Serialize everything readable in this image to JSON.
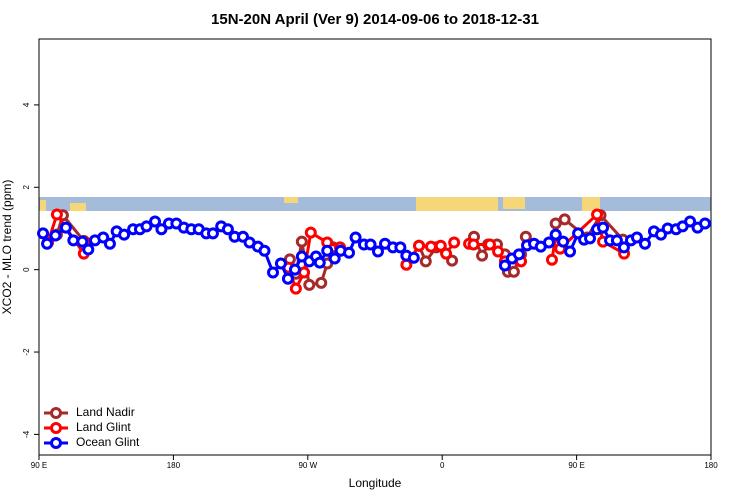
{
  "chart_data": {
    "type": "line",
    "title": "15N-20N April (Ver 9)   2014-09-06 to 2018-12-31",
    "xlabel": "Longitude",
    "ylabel": "XCO2 - MLO trend (ppm)",
    "xlim": [
      90,
      540
    ],
    "xticks": [
      {
        "value": 90,
        "label": "90 E"
      },
      180,
      {
        "value": 270,
        "label": "90 W"
      },
      {
        "value": 360,
        "label": "0"
      },
      {
        "value": 450,
        "label": "90 E"
      },
      {
        "value": 540,
        "label": "180"
      }
    ],
    "ylim": [
      -4.5,
      5.6
    ],
    "yticks": [
      -4,
      -2,
      0,
      2,
      4
    ],
    "legend": "bottom-left",
    "series": [
      {
        "name": "Land Nadir",
        "color": "#a52a2a",
        "x": [
          96,
          102,
          106,
          120,
          200,
          258,
          262,
          266,
          271,
          279,
          283,
          287,
          320,
          344.5,
          349,
          356,
          359,
          366.6,
          374,
          381.3,
          386.7,
          390.7,
          396.7,
          402,
          404,
          408,
          412.8,
          416,
          425,
          436,
          442,
          457,
          466,
          481
        ],
        "values": [
          0.66,
          0.85,
          1.32,
          0.7,
          null,
          0.25,
          -0.1,
          0.68,
          -0.37,
          -0.32,
          0.15,
          0.54,
          null,
          0.58,
          0.2,
          0.54,
          0.56,
          0.22,
          null,
          0.8,
          0.34,
          0.61,
          0.61,
          0.37,
          -0.05,
          -0.05,
          0.37,
          0.8,
          null,
          1.12,
          1.22,
          0.78,
          1.32,
          0.73
        ]
      },
      {
        "name": "Land Glint",
        "color": "#ff0000",
        "x": [
          96,
          102,
          120,
          121,
          200,
          257,
          262,
          267.5,
          272,
          283,
          291.6,
          310,
          336,
          344.5,
          352.5,
          359,
          362.6,
          368,
          373,
          378,
          381,
          392,
          397.4,
          402,
          408.7,
          412.8,
          425,
          433.5,
          436,
          439,
          463.7,
          467.7,
          481.8
        ],
        "values": [
          0.66,
          1.34,
          0.39,
          0.66,
          null,
          0.05,
          -0.46,
          -0.07,
          0.9,
          0.66,
          0.54,
          null,
          0.12,
          0.58,
          0.56,
          0.58,
          0.39,
          0.66,
          null,
          0.63,
          0.61,
          0.61,
          0.44,
          0.2,
          0.27,
          0.2,
          null,
          0.24,
          0.83,
          0.51,
          1.34,
          0.68,
          0.39
        ]
      },
      {
        "name": "Ocean Glint",
        "color": "#0000ff",
        "x": [
          92.7,
          95.4,
          101,
          108,
          113,
          119,
          123,
          127.5,
          133,
          137.5,
          142,
          147,
          153,
          157.6,
          162,
          167.7,
          172,
          177,
          182,
          187,
          192,
          197,
          202,
          206.5,
          212,
          216.5,
          221,
          226.6,
          231,
          236.6,
          241,
          246.7,
          252,
          256.7,
          261.4,
          266,
          271,
          275.5,
          278,
          283,
          288,
          292,
          297.6,
          302,
          307.6,
          312,
          317,
          321.7,
          327,
          332,
          336,
          341,
          370,
          402,
          406.7,
          411.4,
          416.8,
          421.5,
          426,
          431.5,
          436,
          441,
          445.6,
          451,
          455,
          459,
          463.7,
          467.7,
          472.4,
          477,
          481.7,
          486.4,
          490.4,
          495.8,
          501.8,
          506.5,
          511,
          516.6,
          521,
          526,
          531,
          536
        ],
        "values": [
          0.88,
          0.63,
          0.83,
          1.02,
          0.71,
          0.68,
          0.49,
          0.71,
          0.78,
          0.63,
          0.93,
          0.85,
          0.98,
          0.98,
          1.05,
          1.17,
          0.98,
          1.12,
          1.12,
          1.02,
          0.98,
          0.98,
          0.88,
          0.88,
          1.05,
          0.98,
          0.8,
          0.8,
          0.66,
          0.56,
          0.46,
          -0.07,
          0.15,
          -0.22,
          0,
          0.32,
          0.2,
          0.32,
          0.17,
          0.46,
          0.27,
          0.46,
          0.41,
          0.78,
          0.61,
          0.61,
          0.44,
          0.63,
          0.54,
          0.54,
          0.34,
          0.29,
          null,
          0.1,
          0.27,
          0.37,
          0.59,
          0.63,
          0.56,
          0.66,
          0.85,
          0.68,
          0.44,
          0.88,
          0.73,
          0.76,
          0.98,
          1.02,
          0.71,
          0.71,
          0.54,
          0.71,
          0.78,
          0.63,
          0.93,
          0.85,
          1.0,
          0.98,
          1.05,
          1.17,
          1.02,
          1.12
        ]
      }
    ]
  }
}
